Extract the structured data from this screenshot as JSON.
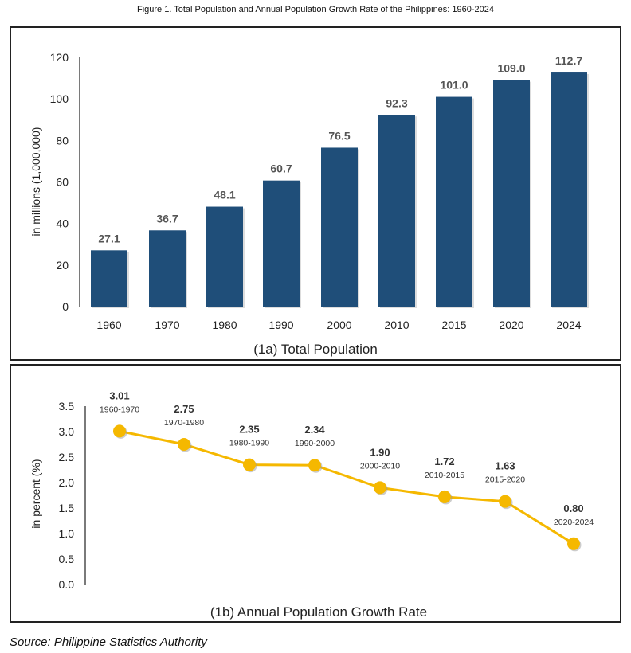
{
  "figure_title": "Figure 1. Total Population and Annual Population Growth Rate of the Philippines: 1960-2024",
  "source": "Source: Philippine Statistics Authority",
  "chart_data": [
    {
      "type": "bar",
      "title": "(1a) Total Population",
      "ylabel": "in millions (1,000,000)",
      "xlabel": "",
      "categories": [
        "1960",
        "1970",
        "1980",
        "1990",
        "2000",
        "2010",
        "2015",
        "2020",
        "2024"
      ],
      "values": [
        27.1,
        36.7,
        48.1,
        60.7,
        76.5,
        92.3,
        101.0,
        109.0,
        112.7
      ],
      "data_labels": [
        "27.1",
        "36.7",
        "48.1",
        "60.7",
        "76.5",
        "92.3",
        "101.0",
        "109.0",
        "112.7"
      ],
      "ylim": [
        0,
        120
      ],
      "yticks": [
        "0",
        "20",
        "40",
        "60",
        "80",
        "100",
        "120"
      ],
      "grid": false,
      "color": "#1f4e79"
    },
    {
      "type": "line",
      "title": "(1b) Annual Population Growth Rate",
      "ylabel": "in percent (%)",
      "xlabel": "",
      "categories": [
        "1960-1970",
        "1970-1980",
        "1980-1990",
        "1990-2000",
        "2000-2010",
        "2010-2015",
        "2015-2020",
        "2020-2024"
      ],
      "values": [
        3.01,
        2.75,
        2.35,
        2.34,
        1.9,
        1.72,
        1.63,
        0.8
      ],
      "data_labels": [
        "3.01",
        "2.75",
        "2.35",
        "2.34",
        "1.90",
        "1.72",
        "1.63",
        "0.80"
      ],
      "ylim": [
        0,
        3.5
      ],
      "yticks": [
        "0.0",
        "0.5",
        "1.0",
        "1.5",
        "2.0",
        "2.5",
        "3.0",
        "3.5"
      ],
      "grid": false,
      "color": "#f5b800"
    }
  ]
}
